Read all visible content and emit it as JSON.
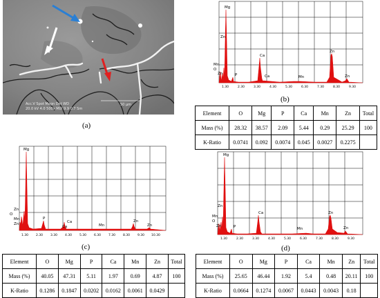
{
  "panels": {
    "a": {
      "label": "(a)",
      "sem": {
        "header_left": "Acc.V  Spot Magn   Det  WD",
        "values_left": "20.0 kV 4.0   500x     MIX  9.9  0.7 Sm",
        "scale": "50 µm",
        "arrow_colors": {
          "white": "#ffffff",
          "blue": "#2a7fd4",
          "red": "#e02020"
        }
      }
    },
    "b": {
      "label": "(b)",
      "x_ticks": [
        "1.30",
        "2.30",
        "3.30",
        "4.30",
        "5.30",
        "6.30",
        "7.30",
        "8.30",
        "9.30"
      ],
      "peaks": [
        "Mg",
        "Zn",
        "Mn",
        "O",
        "Zn",
        "P",
        "Ca",
        "Ca",
        "Mn",
        "Zn",
        "Zn"
      ],
      "table": {
        "header": [
          "Element",
          "O",
          "Mg",
          "P",
          "Ca",
          "Mn",
          "Zn",
          "Total"
        ],
        "rows": [
          [
            "Mass (%)",
            "28.32",
            "38.57",
            "2.09",
            "5.44",
            "0.29",
            "25.29",
            "100"
          ],
          [
            "K-Ratio",
            "0.0741",
            "0.092",
            "0.0074",
            "0.045",
            "0.0027",
            "0.2275",
            ""
          ]
        ]
      }
    },
    "c": {
      "label": "(c)",
      "x_ticks": [
        "1.30",
        "2.30",
        "3.30",
        "4.30",
        "5.30",
        "6.30",
        "7.30",
        "8.30",
        "9.30",
        "10.30"
      ],
      "peaks": [
        "Mg",
        "Zn",
        "O",
        "Mn",
        "Zn",
        "P",
        "Ca",
        "Ca",
        "Mn",
        "Zn",
        "Zn"
      ],
      "table": {
        "header": [
          "Element",
          "O",
          "Mg",
          "P",
          "Ca",
          "Mn",
          "Zn",
          "Total"
        ],
        "rows": [
          [
            "Mass (%)",
            "40.05",
            "47.31",
            "5.11",
            "1.97",
            "0.69",
            "4.87",
            "100"
          ],
          [
            "K-Ratio",
            "0.1286",
            "0.1847",
            "0.0202",
            "0.0162",
            "0.0061",
            "0.0429",
            ""
          ]
        ]
      }
    },
    "d": {
      "label": "(d)",
      "x_ticks": [
        "1.30",
        "2.30",
        "3.30",
        "4.30",
        "5.30",
        "6.30",
        "7.30",
        "8.30",
        "9.30"
      ],
      "peaks": [
        "Mg",
        "Zn",
        "Mn",
        "O",
        "Zn",
        "P",
        "Ca",
        "Mn",
        "Zn",
        "Zn"
      ],
      "table": {
        "header": [
          "Element",
          "O",
          "Mg",
          "P",
          "Ca",
          "Mn",
          "Zn",
          "Total"
        ],
        "rows": [
          [
            "Mass (%)",
            "25.65",
            "46.44",
            "1.92",
            "5.4",
            "0.48",
            "20.11",
            "100"
          ],
          [
            "K-Ratio",
            "0.0664",
            "0.1274",
            "0.0067",
            "0.0443",
            "0.0043",
            "0.18",
            ""
          ]
        ]
      }
    }
  },
  "colors": {
    "spectrum": "#e01010",
    "grid": "#000000"
  }
}
